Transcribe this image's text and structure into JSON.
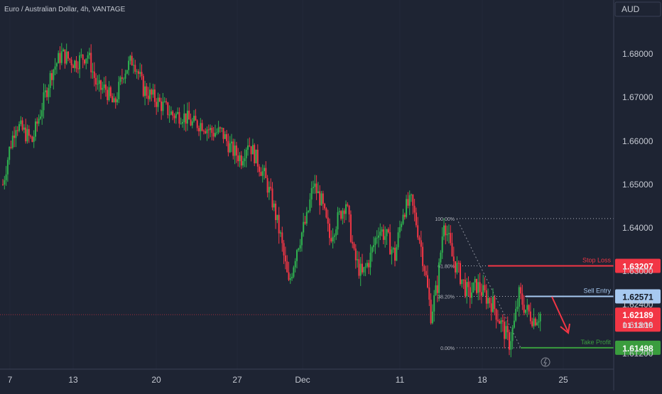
{
  "header": {
    "title": "Euro / Australian Dollar, 4h, VANTAGE"
  },
  "currency_badge": "AUD",
  "colors": {
    "background": "#1e2433",
    "up": "#26a69a",
    "up_candle": "#2fb24f",
    "down": "#f23645",
    "stop_loss": "#f23645",
    "sell_entry": "#a7c9f0",
    "take_profit": "#3a9d3e",
    "axis_text": "#c5c9d2",
    "grid": "#2b3142"
  },
  "chart_data": {
    "type": "candlestick",
    "symbol": "Euro / Australian Dollar",
    "timeframe": "4h",
    "broker": "VANTAGE",
    "y_ticks": [
      "1.68000",
      "1.67000",
      "1.66000",
      "1.65000",
      "1.64000",
      "1.63000",
      "1.62400",
      "1.61800",
      "1.61200"
    ],
    "ylim": [
      1.6095,
      1.689
    ],
    "x_ticks": [
      "7",
      "13",
      "20",
      "27",
      "Dec",
      "11",
      "18",
      "25"
    ],
    "price_path": [
      [
        0,
        1.65
      ],
      [
        4,
        1.658
      ],
      [
        8,
        1.664
      ],
      [
        13,
        1.662
      ],
      [
        18,
        1.66
      ],
      [
        24,
        1.668
      ],
      [
        30,
        1.676
      ],
      [
        36,
        1.68
      ],
      [
        44,
        1.678
      ],
      [
        52,
        1.68
      ],
      [
        58,
        1.672
      ],
      [
        63,
        1.672
      ],
      [
        68,
        1.668
      ],
      [
        74,
        1.676
      ],
      [
        80,
        1.679
      ],
      [
        86,
        1.672
      ],
      [
        92,
        1.67
      ],
      [
        98,
        1.668
      ],
      [
        104,
        1.666
      ],
      [
        110,
        1.666
      ],
      [
        116,
        1.664
      ],
      [
        122,
        1.664
      ],
      [
        128,
        1.662
      ],
      [
        134,
        1.662
      ],
      [
        140,
        1.658
      ],
      [
        146,
        1.656
      ],
      [
        150,
        1.66
      ],
      [
        155,
        1.656
      ],
      [
        160,
        1.652
      ],
      [
        165,
        1.646
      ],
      [
        170,
        1.638
      ],
      [
        175,
        1.628
      ],
      [
        180,
        1.636
      ],
      [
        186,
        1.642
      ],
      [
        190,
        1.65
      ],
      [
        195,
        1.646
      ],
      [
        200,
        1.638
      ],
      [
        205,
        1.642
      ],
      [
        210,
        1.646
      ],
      [
        215,
        1.634
      ],
      [
        220,
        1.63
      ],
      [
        225,
        1.634
      ],
      [
        230,
        1.64
      ],
      [
        235,
        1.638
      ],
      [
        240,
        1.634
      ],
      [
        245,
        1.644
      ],
      [
        250,
        1.646
      ],
      [
        255,
        1.638
      ],
      [
        258,
        1.632
      ],
      [
        262,
        1.622
      ],
      [
        266,
        1.628
      ],
      [
        270,
        1.642
      ],
      [
        275,
        1.634
      ],
      [
        280,
        1.63
      ],
      [
        285,
        1.626
      ],
      [
        290,
        1.628
      ],
      [
        295,
        1.626
      ],
      [
        300,
        1.624
      ],
      [
        305,
        1.62
      ],
      [
        310,
        1.616
      ],
      [
        313,
        1.62
      ],
      [
        316,
        1.626
      ],
      [
        320,
        1.623
      ],
      [
        325,
        1.621
      ],
      [
        329,
        1.622
      ]
    ],
    "fibonacci": [
      {
        "label": "100.00%",
        "price": 1.64215
      },
      {
        "label": "61.80%",
        "price": 1.63207
      },
      {
        "label": "38.20%",
        "price": 1.62571
      },
      {
        "label": "0.00%",
        "price": 1.61498
      }
    ],
    "levels": [
      {
        "name": "Stop Loss",
        "price": 1.63207,
        "label": "1.63207",
        "color": "#f23645"
      },
      {
        "name": "Sell Entry",
        "price": 1.62571,
        "label": "1.62571",
        "color": "#a7c9f0"
      },
      {
        "name": "Take Profit",
        "price": 1.61498,
        "label": "1.61498",
        "color": "#3a9d3e"
      }
    ],
    "current_price": {
      "price": 1.62189,
      "label": "1.62189",
      "countdown": "01:13:18"
    },
    "annotation": "red arrow pointing down toward Take Profit"
  }
}
